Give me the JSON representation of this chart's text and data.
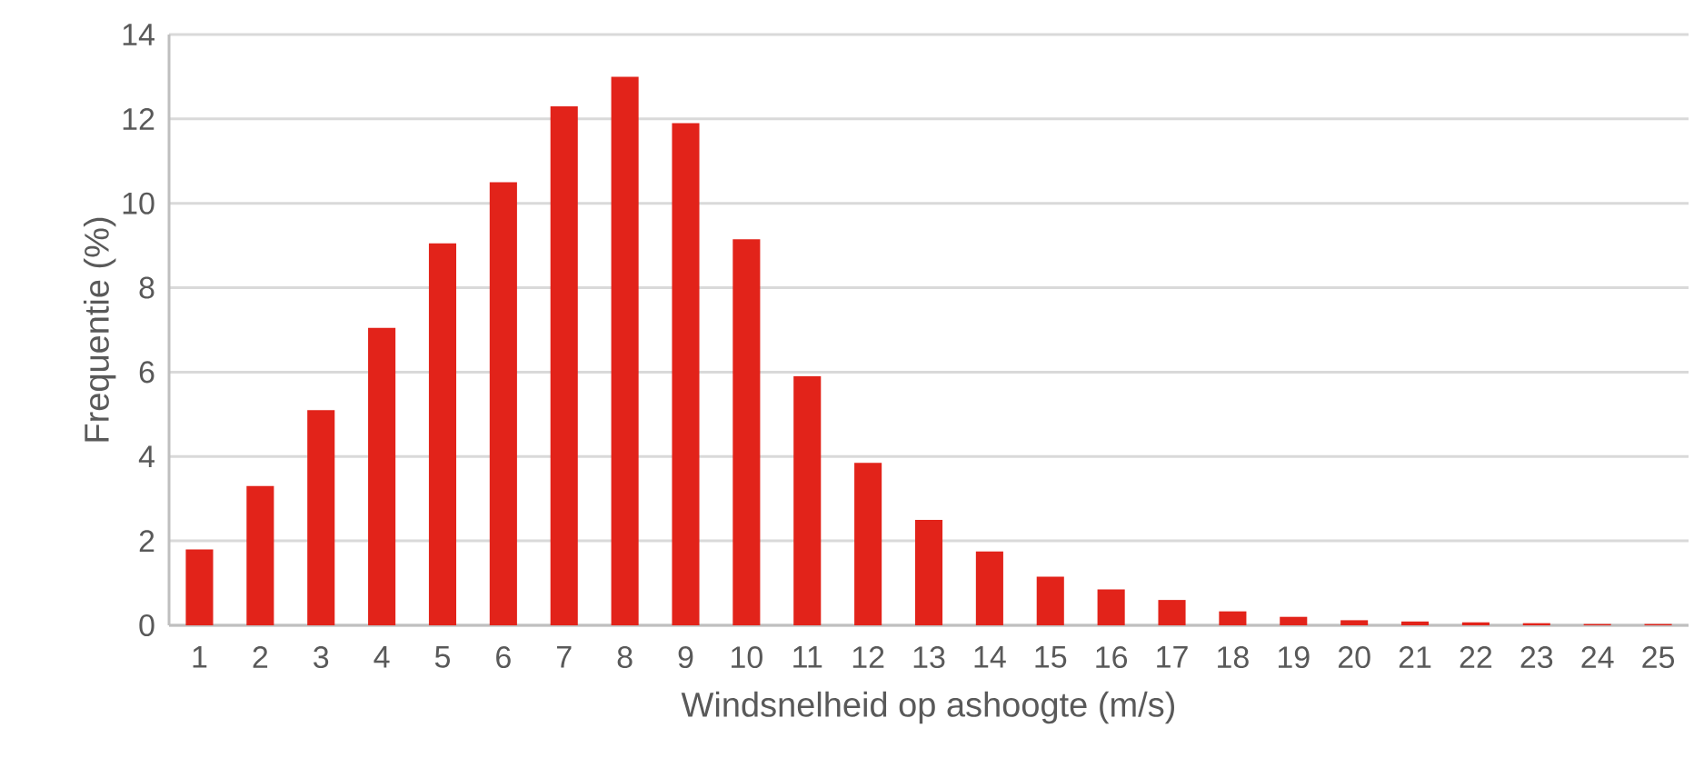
{
  "chart_data": {
    "type": "bar",
    "xlabel": "Windsnelheid op ashoogte (m/s)",
    "ylabel": "Frequentie (%)",
    "categories": [
      "1",
      "2",
      "3",
      "4",
      "5",
      "6",
      "7",
      "8",
      "9",
      "10",
      "11",
      "12",
      "13",
      "14",
      "15",
      "16",
      "17",
      "18",
      "19",
      "20",
      "21",
      "22",
      "23",
      "24",
      "25"
    ],
    "values": [
      1.8,
      3.3,
      5.1,
      7.05,
      9.05,
      10.5,
      12.3,
      13.0,
      11.9,
      9.15,
      5.9,
      3.85,
      2.5,
      1.75,
      1.15,
      0.85,
      0.6,
      0.33,
      0.2,
      0.12,
      0.09,
      0.07,
      0.05,
      0.03,
      0.03
    ],
    "color": "#e2231a",
    "ylim": [
      0,
      14
    ],
    "yticks": [
      0,
      2,
      4,
      6,
      8,
      10,
      12,
      14
    ],
    "grid": "y"
  }
}
